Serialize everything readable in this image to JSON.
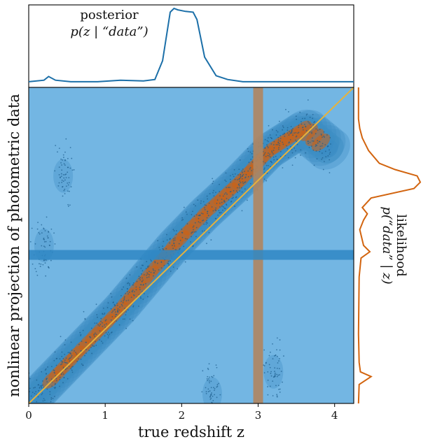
{
  "chart_data": [
    {
      "type": "scatter",
      "xlabel": "true redshift z",
      "ylabel": "nonlinear projection of photometric data",
      "xlim": [
        0,
        4.25
      ],
      "xticks": [
        "0",
        "1",
        "2",
        "3",
        "4"
      ],
      "ylim": [
        0,
        1
      ],
      "grid": false,
      "ridge": [
        [
          0.0,
          0.0
        ],
        [
          0.4,
          0.1
        ],
        [
          0.8,
          0.2
        ],
        [
          1.2,
          0.3
        ],
        [
          1.55,
          0.4
        ],
        [
          1.9,
          0.5
        ],
        [
          2.3,
          0.6
        ],
        [
          2.75,
          0.7
        ],
        [
          3.15,
          0.8
        ],
        [
          3.6,
          0.87
        ],
        [
          3.95,
          0.8
        ]
      ],
      "outlier_clumps": [
        [
          0.2,
          0.5
        ],
        [
          0.45,
          0.72
        ],
        [
          3.2,
          0.1
        ],
        [
          2.4,
          0.03
        ]
      ],
      "fit_line": [
        [
          0,
          0
        ],
        [
          4.25,
          1
        ]
      ],
      "highlight_x": 3.0,
      "highlight_y": 0.47,
      "colors": {
        "background": "#73b6e3",
        "contours": "#3b8dc4",
        "core": "#d1600f",
        "scatter": "#1d5d8c",
        "fit_line": "#e6b23c",
        "vband": "#b0855f",
        "hband": "#2f87c4"
      }
    },
    {
      "type": "line",
      "annotation_line1": "posterior",
      "annotation_line2": "p(z | “data”)",
      "xlim": [
        0,
        4.25
      ],
      "x": [
        0,
        0.2,
        0.26,
        0.35,
        0.55,
        0.9,
        1.2,
        1.5,
        1.65,
        1.75,
        1.85,
        1.9,
        1.95,
        2.05,
        2.15,
        2.2,
        2.3,
        2.45,
        2.6,
        2.8,
        4.25
      ],
      "y": [
        0.02,
        0.04,
        0.09,
        0.04,
        0.02,
        0.02,
        0.04,
        0.03,
        0.05,
        0.3,
        0.95,
        1.0,
        0.98,
        0.96,
        0.95,
        0.85,
        0.35,
        0.1,
        0.05,
        0.02,
        0.02
      ],
      "color": "#1b6fa8"
    },
    {
      "type": "line",
      "orientation": "vertical",
      "annotation_line1": "likelihood",
      "annotation_line2": "p(“data” | z)",
      "ylim": [
        0,
        1
      ],
      "y": [
        0,
        0.06,
        0.085,
        0.1,
        0.13,
        0.22,
        0.4,
        0.46,
        0.48,
        0.5,
        0.55,
        0.58,
        0.6,
        0.62,
        0.65,
        0.68,
        0.7,
        0.72,
        0.74,
        0.76,
        0.8,
        0.84,
        0.87,
        0.9,
        1
      ],
      "x": [
        0.02,
        0.03,
        0.22,
        0.05,
        0.03,
        0.02,
        0.03,
        0.06,
        0.2,
        0.1,
        0.04,
        0.1,
        0.16,
        0.08,
        0.22,
        0.9,
        1.0,
        0.95,
        0.6,
        0.35,
        0.18,
        0.08,
        0.04,
        0.02,
        0.02
      ],
      "color": "#d2640f"
    }
  ]
}
